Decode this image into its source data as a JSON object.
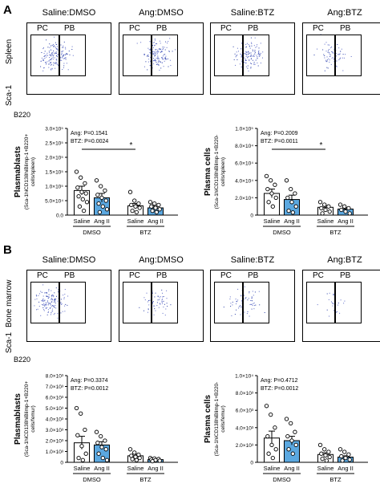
{
  "panels": [
    {
      "letter": "A",
      "tissue_label": "Spleen",
      "flow": {
        "titles": [
          "Saline:DMSO",
          "Ang:DMSO",
          "Saline:BTZ",
          "Ang:BTZ"
        ],
        "gate_left": "PC",
        "gate_right": "PB",
        "y_axis": "Sca-1",
        "x_axis": "B220"
      }
    },
    {
      "letter": "B",
      "tissue_label": "Bone marrow",
      "flow": {
        "titles": [
          "Saline:DMSO",
          "Ang:DMSO",
          "Saline:BTZ",
          "Ang:BTZ"
        ],
        "gate_left": "PC",
        "gate_right": "PB",
        "y_axis": "Sca-1",
        "x_axis": "B220"
      }
    }
  ],
  "colors": {
    "saline": "#ffffff",
    "angii": "#5ba8e0",
    "axis": "#000000"
  },
  "chart_data": [
    {
      "type": "bar",
      "id": "A-plasmablasts",
      "ylabel_main": "Plasmablasts",
      "ylabel_sub": "(Sca-1hiCD138hiBlimp-1+B220+",
      "ylabel_unit": "cells/spleen)",
      "yticks": [
        "0.0",
        "5.0×10⁴",
        "1.0×10⁵",
        "1.5×10⁵",
        "2.0×10⁵",
        "2.5×10⁵",
        "3.0×10⁵"
      ],
      "ylim": [
        0,
        300000
      ],
      "stats": [
        "Ang: P=0.1541",
        "BTZ: P=0.0024"
      ],
      "sig_mark": "*",
      "categories": [
        "Saline",
        "Ang II",
        "Saline",
        "Ang II"
      ],
      "groups": [
        "DMSO",
        "BTZ"
      ],
      "values": [
        85000,
        60000,
        32000,
        25000
      ],
      "errors": [
        15000,
        15000,
        8000,
        6000
      ],
      "points": [
        [
          150000,
          130000,
          110000,
          95000,
          80000,
          75000,
          65000,
          55000,
          45000,
          30000,
          15000
        ],
        [
          120000,
          100000,
          85000,
          70000,
          60000,
          50000,
          40000,
          30000,
          20000,
          10000
        ],
        [
          80000,
          50000,
          40000,
          35000,
          30000,
          25000,
          15000,
          10000
        ],
        [
          45000,
          40000,
          35000,
          30000,
          25000,
          20000,
          15000,
          10000
        ]
      ]
    },
    {
      "type": "bar",
      "id": "A-plasmacells",
      "ylabel_main": "Plasma cells",
      "ylabel_sub": "(Sca-1hiCD138hiBlimp-1+B220-",
      "ylabel_unit": "cells/spleen)",
      "yticks": [
        "0",
        "2.0×10⁴",
        "4.0×10⁴",
        "6.0×10⁴",
        "8.0×10⁴",
        "1.0×10⁵"
      ],
      "ylim": [
        0,
        100000
      ],
      "stats": [
        "Ang: P=0.2009",
        "BTZ: P=0.0011"
      ],
      "sig_mark": "*",
      "categories": [
        "Saline",
        "Ang II",
        "Saline",
        "Ang II"
      ],
      "groups": [
        "DMSO",
        "BTZ"
      ],
      "values": [
        25000,
        18000,
        9000,
        7000
      ],
      "errors": [
        5000,
        5000,
        2000,
        1500
      ],
      "points": [
        [
          45000,
          40000,
          35000,
          30000,
          25000,
          20000,
          15000,
          10000
        ],
        [
          40000,
          30000,
          25000,
          20000,
          15000,
          10000,
          5000,
          3000
        ],
        [
          15000,
          12000,
          10000,
          8000,
          6000,
          4000,
          2000
        ],
        [
          12000,
          10000,
          8000,
          6000,
          4000,
          2000
        ]
      ]
    },
    {
      "type": "bar",
      "id": "B-plasmablasts",
      "ylabel_main": "Plasmablasts",
      "ylabel_sub": "(Sca-1hiCD138hiBlimp-1+B220+",
      "ylabel_unit": "cells/femur)",
      "yticks": [
        "0",
        "1.0×10³",
        "2.0×10³",
        "3.0×10³",
        "4.0×10³",
        "5.0×10³",
        "6.0×10³",
        "7.0×10³",
        "8.0×10³"
      ],
      "ylim": [
        0,
        8000
      ],
      "stats": [
        "Ang: P=0.3374",
        "BTZ: P=0.0012"
      ],
      "sig_mark": "",
      "categories": [
        "Saline",
        "Ang II",
        "Saline",
        "Ang II"
      ],
      "groups": [
        "DMSO",
        "BTZ"
      ],
      "values": [
        1800,
        1600,
        600,
        250
      ],
      "errors": [
        600,
        300,
        150,
        60
      ],
      "points": [
        [
          5000,
          4500,
          3000,
          2500,
          1500,
          800,
          400,
          200
        ],
        [
          2800,
          2400,
          2000,
          1800,
          1400,
          1200,
          800,
          400,
          200
        ],
        [
          1200,
          900,
          700,
          600,
          500,
          400,
          300,
          200
        ],
        [
          400,
          350,
          300,
          250,
          200,
          150,
          100
        ]
      ]
    },
    {
      "type": "bar",
      "id": "B-plasmacells",
      "ylabel_main": "Plasma cells",
      "ylabel_sub": "(Sca-1hiCD138hiBlimp-1+B220-",
      "ylabel_unit": "cells/femur)",
      "yticks": [
        "0",
        "2.0×10³",
        "4.0×10³",
        "6.0×10³",
        "8.0×10³",
        "1.0×10⁴"
      ],
      "ylim": [
        0,
        10000
      ],
      "stats": [
        "Ang: P=0.4712",
        "BTZ: P=0.0012"
      ],
      "sig_mark": "",
      "categories": [
        "Saline",
        "Ang II",
        "Saline",
        "Ang II"
      ],
      "groups": [
        "DMSO",
        "BTZ"
      ],
      "values": [
        2800,
        2500,
        900,
        600
      ],
      "errors": [
        800,
        500,
        200,
        150
      ],
      "points": [
        [
          6500,
          5500,
          4000,
          3000,
          2000,
          1500,
          1000,
          500
        ],
        [
          5000,
          4500,
          3500,
          3000,
          2500,
          2000,
          1500,
          1000
        ],
        [
          2000,
          1500,
          1200,
          1000,
          800,
          600,
          400,
          200
        ],
        [
          1500,
          1200,
          900,
          700,
          500,
          300,
          200
        ]
      ]
    }
  ]
}
